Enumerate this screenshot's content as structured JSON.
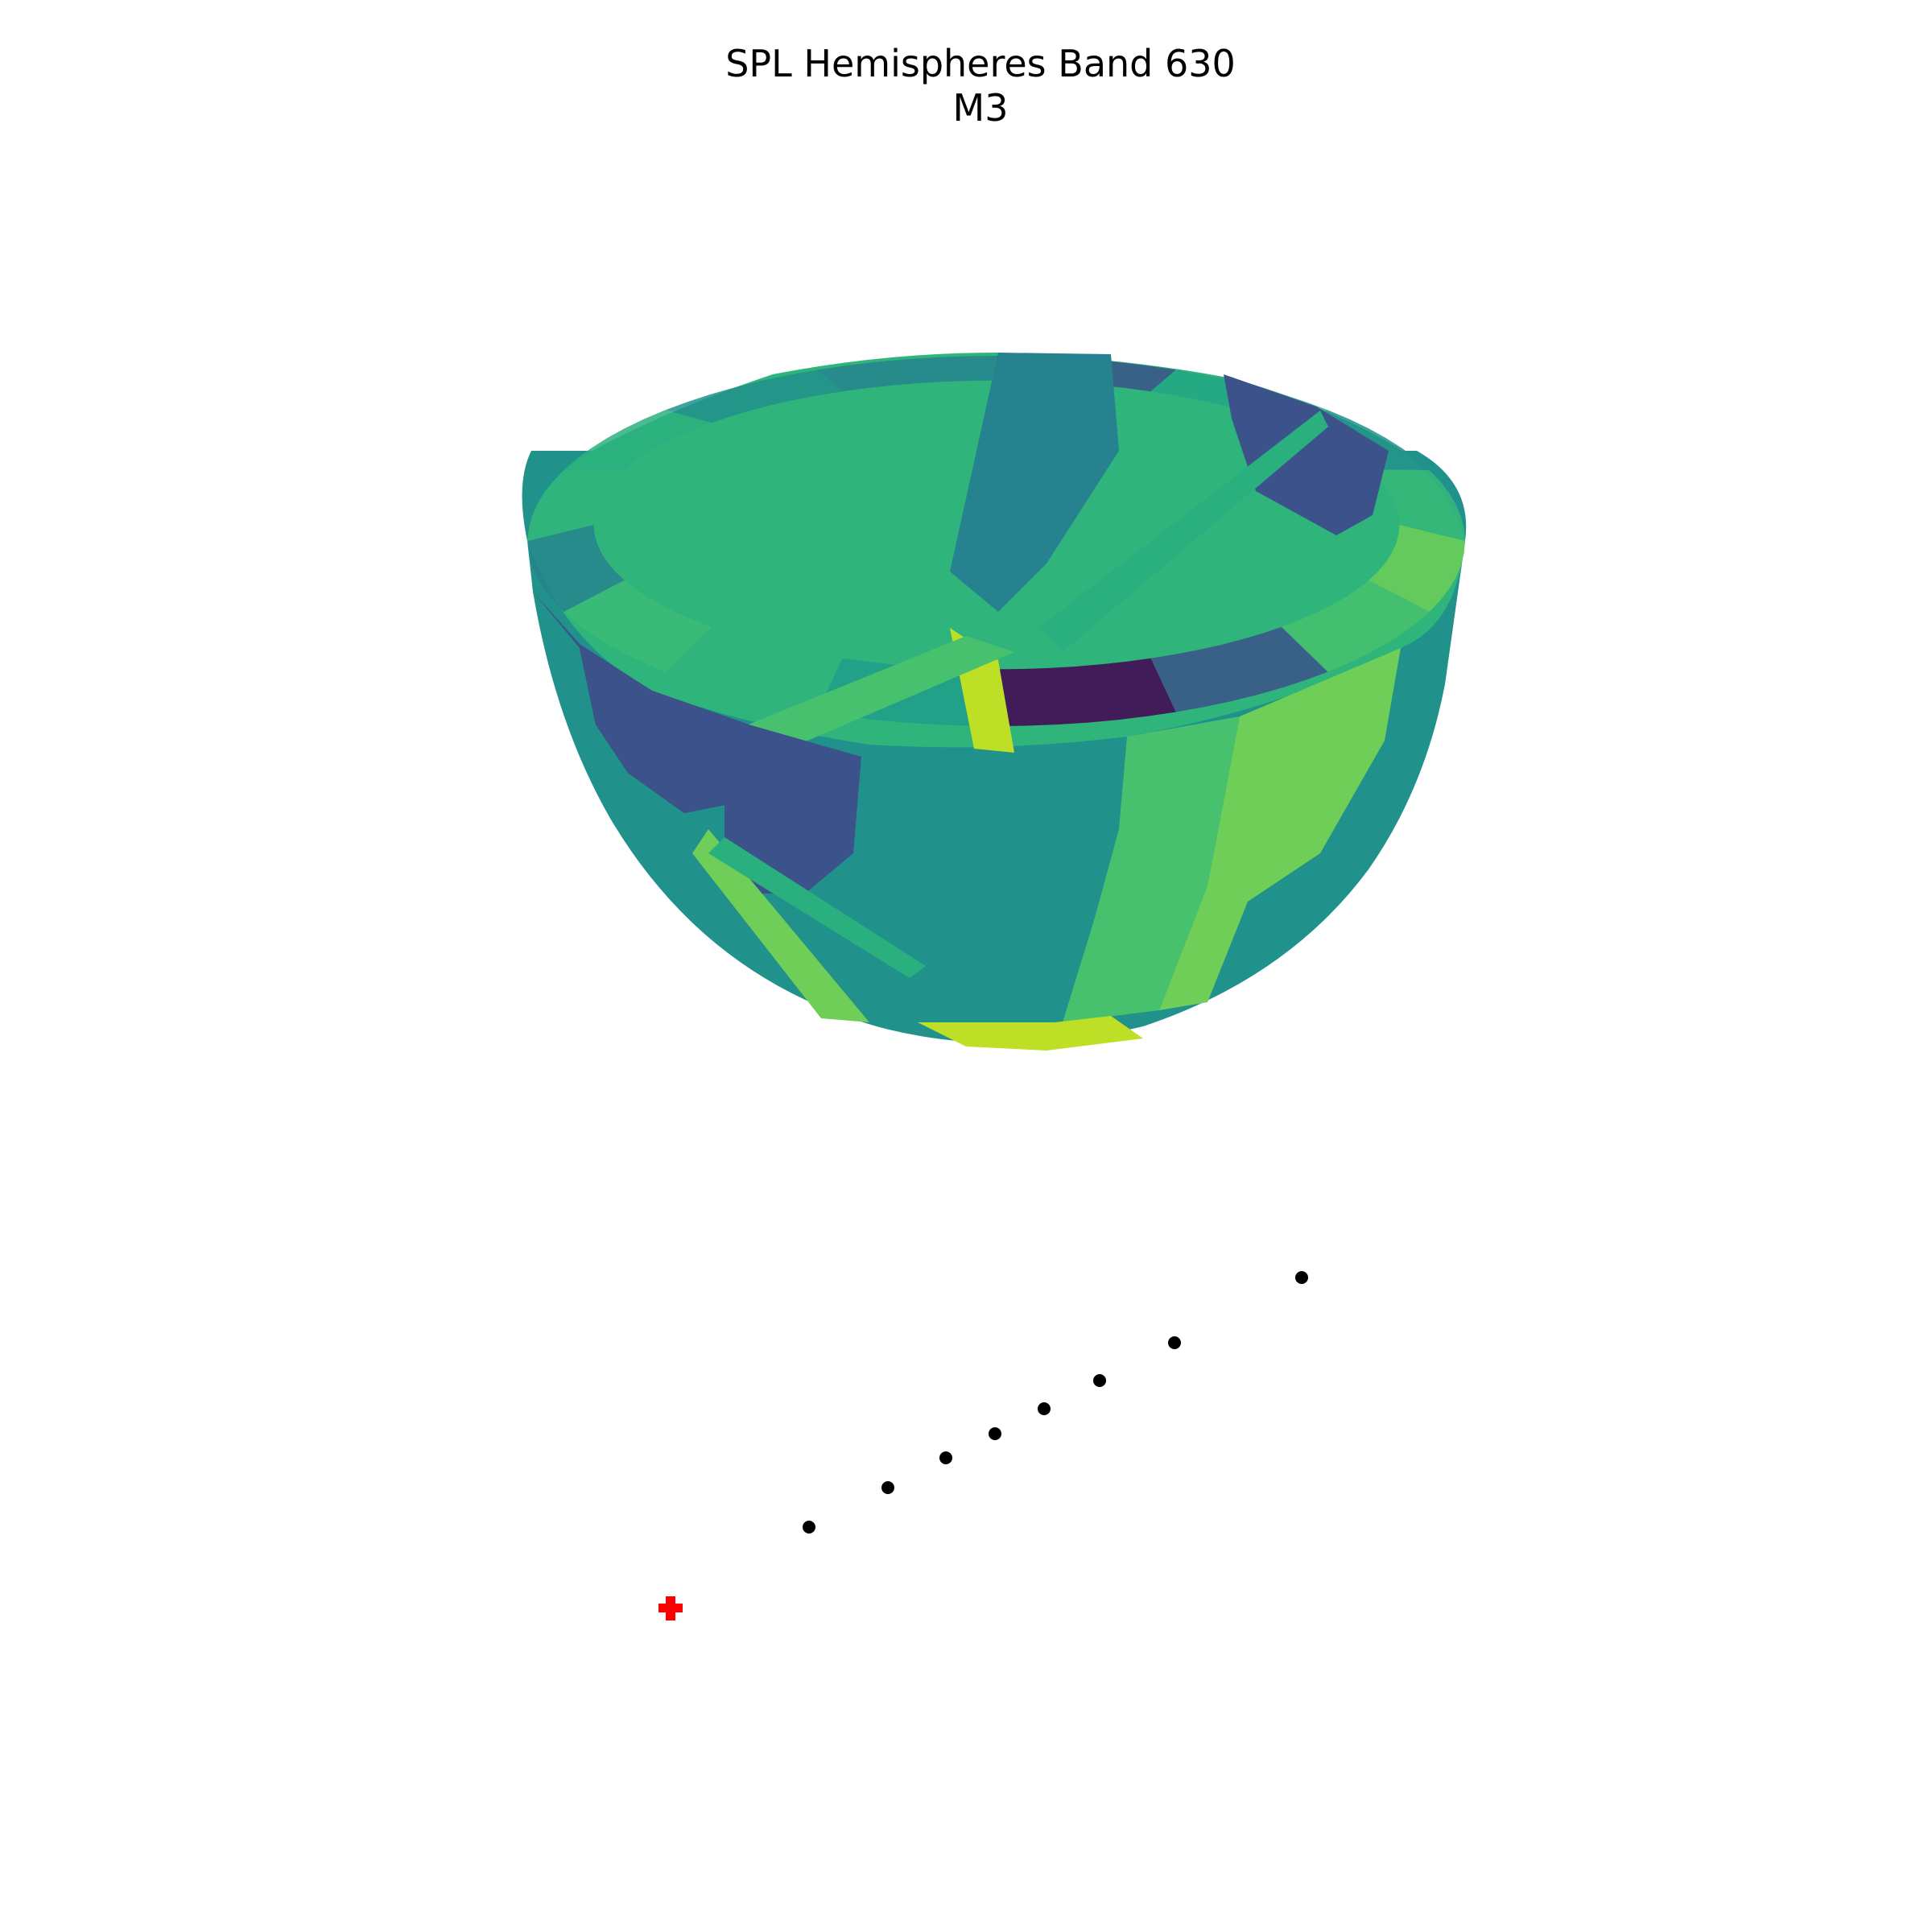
{
  "chart_data": {
    "type": "scatter",
    "title_lines": [
      "SPL Hemispheres Band 630",
      "M3"
    ],
    "axes_visible": false,
    "surface": {
      "shape": "hemisphere",
      "colormap": "viridis",
      "rim_color_order": [
        "#2fb47c",
        "#2ab07f",
        "#21918c",
        "#26828e",
        "#3b528b",
        "#22a785",
        "#21918c",
        "#35b779",
        "#6ece58",
        "#48c16e",
        "#3b528b",
        "#440154",
        "#1f9e89",
        "#2fb47c",
        "#3bbb75",
        "#26828e"
      ]
    },
    "points": {
      "color": "#000000",
      "marker": "circle",
      "count": 8
    },
    "source_marker": {
      "color": "#ff0000",
      "marker": "plus"
    }
  }
}
